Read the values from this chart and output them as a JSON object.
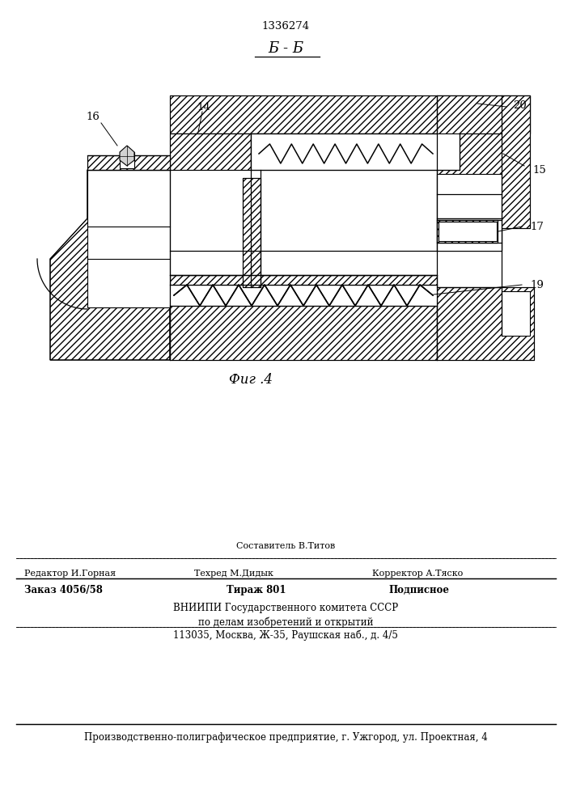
{
  "patent_number": "1336274",
  "section_label": "Б - Б",
  "figure_label": "Фиг .4",
  "bg_color": "#ffffff",
  "line_color": "#000000",
  "footer": {
    "line1": "Составитель В.Титов",
    "line2_a": "Редактор И.Горная",
    "line2_b": "Техред М.Дидык",
    "line2_c": "Корректор А.Тяско",
    "line3_a": "Заказ 4056/58",
    "line3_b": "Тираж 801",
    "line3_c": "Подписное",
    "line4": "ВНИИПИ Государственного комитета СССР",
    "line5": "по делам изобретений и открытий",
    "line6": "113035, Москва, Ж-35, Раушская наб., д. 4/5",
    "line7": "Производственно-полиграфическое предприятие, г. Ужгород, ул. Проектная, 4"
  }
}
